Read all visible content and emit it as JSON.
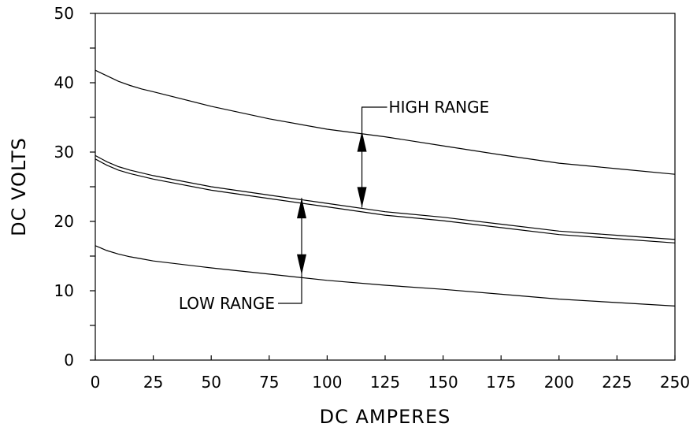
{
  "chart_data": {
    "type": "line",
    "xlabel": "DC AMPERES",
    "ylabel": "DC VOLTS",
    "xlim": [
      0,
      250
    ],
    "ylim": [
      0,
      50
    ],
    "x_ticks": [
      0,
      25,
      50,
      75,
      100,
      125,
      150,
      175,
      200,
      225,
      250
    ],
    "x_tick_labels": [
      "0",
      "25",
      "50",
      "75",
      "100",
      "125",
      "150",
      "175",
      "200",
      "225",
      "250"
    ],
    "y_ticks": [
      0,
      10,
      20,
      30,
      40,
      50
    ],
    "y_tick_labels": [
      "0",
      "10",
      "20",
      "30",
      "40",
      "50"
    ],
    "y_minor_ticks": [
      5,
      15,
      25,
      35,
      45
    ],
    "grid": false,
    "x": [
      0,
      5,
      10,
      15,
      20,
      25,
      50,
      75,
      100,
      125,
      150,
      175,
      200,
      225,
      250
    ],
    "series": [
      {
        "values": [
          41.8,
          41.0,
          40.2,
          39.6,
          39.1,
          38.7,
          36.6,
          34.8,
          33.3,
          32.2,
          30.9,
          29.6,
          28.4,
          27.6,
          26.8
        ]
      },
      {
        "values": [
          29.5,
          28.6,
          27.9,
          27.4,
          27.0,
          26.6,
          25.0,
          23.8,
          22.6,
          21.4,
          20.6,
          19.6,
          18.6,
          18.0,
          17.4
        ]
      },
      {
        "values": [
          29.0,
          28.1,
          27.4,
          26.9,
          26.5,
          26.1,
          24.5,
          23.3,
          22.1,
          20.9,
          20.1,
          19.1,
          18.1,
          17.5,
          16.9
        ]
      },
      {
        "values": [
          16.5,
          15.8,
          15.3,
          14.9,
          14.6,
          14.3,
          13.3,
          12.4,
          11.5,
          10.8,
          10.2,
          9.5,
          8.8,
          8.3,
          7.8
        ]
      }
    ],
    "annotations": [
      {
        "text": "HIGH RANGE",
        "x": 115,
        "from": 22.0,
        "to": 33.0
      },
      {
        "text": "LOW RANGE",
        "x": 89,
        "from": 12.3,
        "to": 23.4
      }
    ]
  }
}
